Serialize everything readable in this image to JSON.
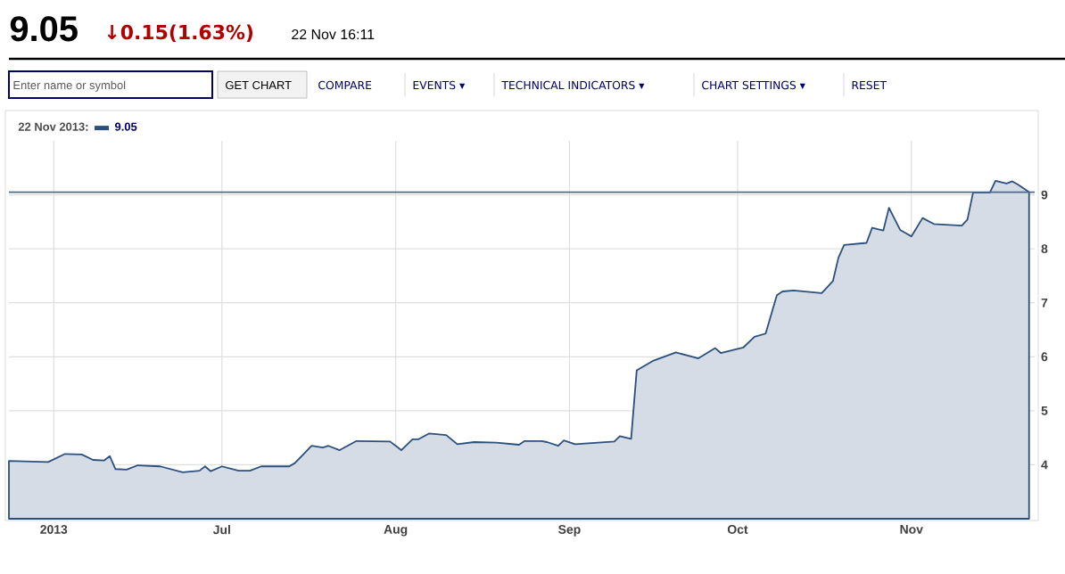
{
  "chart_data": {
    "type": "area",
    "title": "9.05",
    "subtitle": "↓0.15(1.63%)",
    "annotations": [
      "22 Nov 16:11",
      "Enter name or symbol",
      "GET CHART",
      "COMPARE",
      "EVENTS ▾",
      "TECHNICAL INDICATORS ▾",
      "CHART SETTINGS ▾",
      "RESET"
    ],
    "legend_title": "22 Nov 2013:",
    "legend": "top left",
    "grid": true,
    "xlim": [
      "2013-05-24",
      "2013-11-23"
    ],
    "xticks": [
      {
        "value": "2013-06-01",
        "label": "2013"
      },
      {
        "value": "2013-07-01",
        "label": "Jul"
      },
      {
        "value": "2013-08-01",
        "label": "Aug"
      },
      {
        "value": "2013-09-01",
        "label": "Sep"
      },
      {
        "value": "2013-10-01",
        "label": "Oct"
      },
      {
        "value": "2013-11-01",
        "label": "Nov"
      }
    ],
    "ylim": [
      3,
      10
    ],
    "yticks": [
      4,
      5,
      6,
      7,
      8,
      9
    ],
    "ref_lines": [
      {
        "axis": "y",
        "value": 9.05,
        "color": "#4a6a9a"
      }
    ],
    "series": [
      {
        "name": "9.05",
        "color": "#2b4f7e",
        "x": [
          "2013-05-24",
          "2013-05-31",
          "2013-06-03",
          "2013-06-06",
          "2013-06-08",
          "2013-06-10",
          "2013-06-11",
          "2013-06-12",
          "2013-06-14",
          "2013-06-16",
          "2013-06-20",
          "2013-06-24",
          "2013-06-27",
          "2013-06-28",
          "2013-06-29",
          "2013-07-01",
          "2013-07-04",
          "2013-07-06",
          "2013-07-08",
          "2013-07-13",
          "2013-07-14",
          "2013-07-17",
          "2013-07-19",
          "2013-07-20",
          "2013-07-22",
          "2013-07-25",
          "2013-07-31",
          "2013-08-02",
          "2013-08-04",
          "2013-08-05",
          "2013-08-07",
          "2013-08-10",
          "2013-08-12",
          "2013-08-15",
          "2013-08-19",
          "2013-08-23",
          "2013-08-24",
          "2013-08-27",
          "2013-08-28",
          "2013-08-30",
          "2013-08-31",
          "2013-09-02",
          "2013-09-09",
          "2013-09-10",
          "2013-09-12",
          "2013-09-13",
          "2013-09-16",
          "2013-09-20",
          "2013-09-24",
          "2013-09-27",
          "2013-09-28",
          "2013-10-02",
          "2013-10-04",
          "2013-10-06",
          "2013-10-08",
          "2013-10-09",
          "2013-10-11",
          "2013-10-16",
          "2013-10-18",
          "2013-10-19",
          "2013-10-20",
          "2013-10-24",
          "2013-10-25",
          "2013-10-27",
          "2013-10-28",
          "2013-10-30",
          "2013-11-01",
          "2013-11-03",
          "2013-11-05",
          "2013-11-10",
          "2013-11-11",
          "2013-11-12",
          "2013-11-15",
          "2013-11-16",
          "2013-11-18",
          "2013-11-19",
          "2013-11-20",
          "2013-11-22"
        ],
        "values": [
          4.07,
          4.05,
          4.2,
          4.19,
          4.09,
          4.08,
          4.16,
          3.92,
          3.91,
          3.99,
          3.97,
          3.86,
          3.89,
          3.97,
          3.88,
          3.97,
          3.89,
          3.89,
          3.97,
          3.97,
          4.03,
          4.35,
          4.32,
          4.35,
          4.27,
          4.44,
          4.43,
          4.27,
          4.47,
          4.47,
          4.58,
          4.55,
          4.38,
          4.42,
          4.41,
          4.37,
          4.44,
          4.44,
          4.42,
          4.35,
          4.45,
          4.38,
          4.43,
          4.53,
          4.48,
          5.75,
          5.93,
          6.08,
          5.97,
          6.16,
          6.07,
          6.17,
          6.37,
          6.43,
          7.14,
          7.21,
          7.23,
          7.18,
          7.4,
          7.84,
          8.07,
          8.11,
          8.39,
          8.34,
          8.76,
          8.35,
          8.23,
          8.57,
          8.46,
          8.43,
          8.54,
          9.04,
          9.04,
          9.26,
          9.21,
          9.25,
          9.19,
          9.05
        ]
      }
    ]
  }
}
